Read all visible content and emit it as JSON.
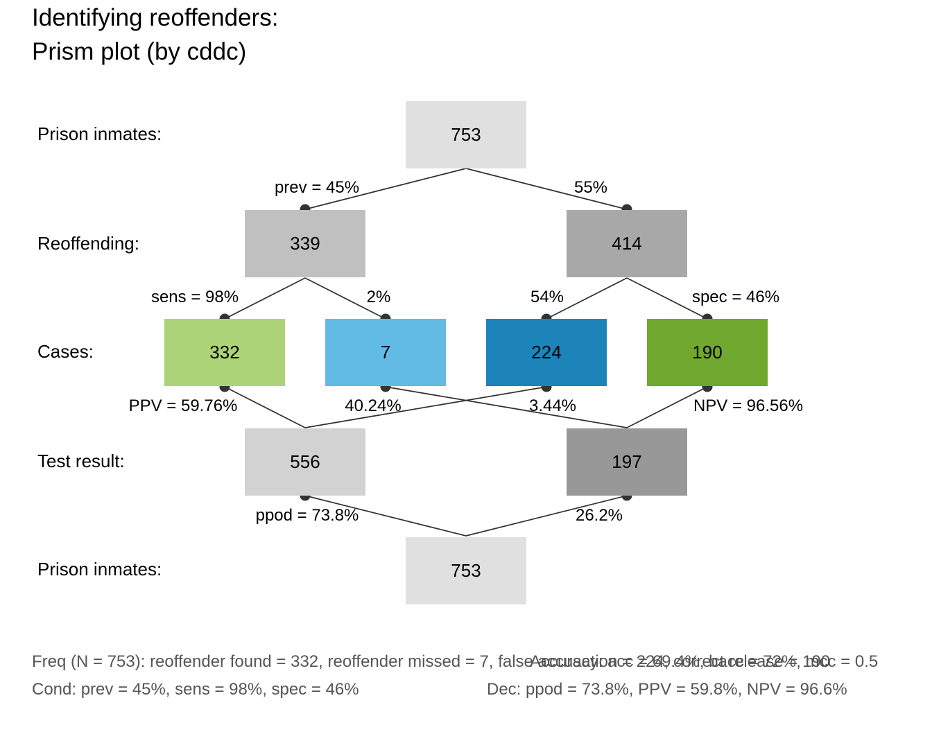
{
  "title": [
    "Identifying reoffenders:",
    "Prism plot (by cddc)"
  ],
  "row_labels": {
    "top": "Prison inmates:",
    "condition": "Reoffending:",
    "cases": "Cases:",
    "decision": "Test result:",
    "bottom": "Prison inmates:"
  },
  "boxes": {
    "top": "753",
    "cond_true": "339",
    "cond_false": "414",
    "hi": "332",
    "mi": "7",
    "fa": "224",
    "cr": "190",
    "dec_pos": "556",
    "dec_neg": "197",
    "bottom": "753"
  },
  "box_colors": {
    "top": "#E0E0E0",
    "cond_true": "#C0C0C0",
    "cond_false": "#A8A8A8",
    "hi": "#ADD378",
    "mi": "#62BBE5",
    "fa": "#1D84BA",
    "cr": "#70A72F",
    "dec_pos": "#D2D2D2",
    "dec_neg": "#989898",
    "bottom": "#E0E0E0"
  },
  "edge_labels": {
    "prev": "prev = 45%",
    "not_prev": "55%",
    "sens": "sens = 98%",
    "mirt": "2%",
    "fart": "54%",
    "spec": "spec = 46%",
    "ppv": "PPV = 59.76%",
    "fdr": "40.24%",
    "for": "3.44%",
    "npv": "NPV = 96.56%",
    "ppod": "ppod = 73.8%",
    "not_ppod": "26.2%"
  },
  "footer": {
    "freq": "Freq (N = 753):  reoffender found = 332, reoffender missed = 7, false accusation = 224, correct release = 190",
    "acc": "Accuracy:  acc = 69.4%, bacc = 72%, mcc = 0.5",
    "cond": "Cond:  prev = 45%, sens = 98%, spec = 46%",
    "dec": "Dec:  ppod = 73.8%, PPV = 59.8%, NPV = 96.6%"
  }
}
